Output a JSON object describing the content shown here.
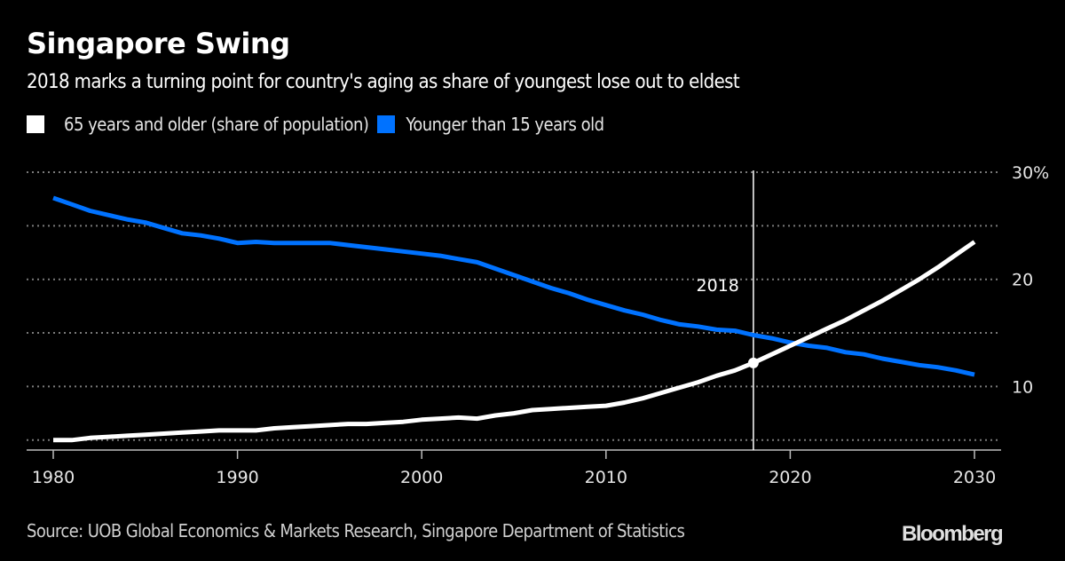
{
  "header": {
    "title": "Singapore Swing",
    "subtitle": "2018 marks a turning point for country's aging as share of youngest lose out to eldest"
  },
  "legend": [
    {
      "label": "65 years and older (share of population)",
      "color": "#ffffff"
    },
    {
      "label": "Younger than 15 years old",
      "color": "#0072ff"
    }
  ],
  "footer": {
    "source": "Source: UOB Global Economics & Markets Research, Singapore Department of Statistics",
    "brand": "Bloomberg"
  },
  "chart_data": {
    "type": "line",
    "title": "Singapore Swing",
    "subtitle": "2018 marks a turning point for country's aging as share of youngest lose out to eldest",
    "xlabel": "",
    "ylabel": "",
    "x": [
      1980,
      1981,
      1982,
      1983,
      1984,
      1985,
      1986,
      1987,
      1988,
      1989,
      1990,
      1991,
      1992,
      1993,
      1994,
      1995,
      1996,
      1997,
      1998,
      1999,
      2000,
      2001,
      2002,
      2003,
      2004,
      2005,
      2006,
      2007,
      2008,
      2009,
      2010,
      2011,
      2012,
      2013,
      2014,
      2015,
      2016,
      2017,
      2018,
      2019,
      2020,
      2021,
      2022,
      2023,
      2024,
      2025,
      2026,
      2027,
      2028,
      2029,
      2030
    ],
    "series": [
      {
        "name": "65 years and older (share of population)",
        "color": "#ffffff",
        "values": [
          5.0,
          5.0,
          5.2,
          5.3,
          5.4,
          5.5,
          5.6,
          5.7,
          5.8,
          5.9,
          5.9,
          5.9,
          6.1,
          6.2,
          6.3,
          6.4,
          6.5,
          6.5,
          6.6,
          6.7,
          6.9,
          7.0,
          7.1,
          7.0,
          7.3,
          7.5,
          7.8,
          7.9,
          8.0,
          8.1,
          8.2,
          8.5,
          8.9,
          9.4,
          9.9,
          10.4,
          11.0,
          11.5,
          12.2,
          13.0,
          13.8,
          14.6,
          15.4,
          16.2,
          17.1,
          18.0,
          19.0,
          20.0,
          21.1,
          22.3,
          23.5
        ]
      },
      {
        "name": "Younger than 15 years old",
        "color": "#0072ff",
        "values": [
          27.6,
          27.0,
          26.4,
          26.0,
          25.6,
          25.3,
          24.8,
          24.3,
          24.1,
          23.8,
          23.4,
          23.5,
          23.4,
          23.4,
          23.4,
          23.4,
          23.2,
          23.0,
          22.8,
          22.6,
          22.4,
          22.2,
          21.9,
          21.6,
          21.0,
          20.4,
          19.8,
          19.2,
          18.7,
          18.1,
          17.6,
          17.1,
          16.7,
          16.2,
          15.8,
          15.6,
          15.3,
          15.2,
          14.8,
          14.5,
          14.1,
          13.8,
          13.6,
          13.2,
          13.0,
          12.6,
          12.3,
          12.0,
          11.8,
          11.5,
          11.1
        ]
      }
    ],
    "ylim": [
      4,
      31
    ],
    "yticks": [
      5,
      10,
      15,
      20,
      25,
      30
    ],
    "ytick_labels": [
      "",
      "10",
      "",
      "20",
      "",
      "30%"
    ],
    "xlim": [
      1979,
      2031.5
    ],
    "xticks": [
      1980,
      1990,
      2000,
      2010,
      2020,
      2030
    ],
    "xtick_labels": [
      "1980",
      "1990",
      "2000",
      "2010",
      "2020",
      "2030"
    ],
    "grid": true,
    "grid_style": "dotted-horizontal",
    "yaxis_side": "right",
    "legend_position": "top-left",
    "annotations": [
      {
        "type": "vertical-line",
        "x": 2018,
        "label": "2018",
        "marker_series": "65 years and older (share of population)",
        "marker_value": 12.2
      }
    ]
  }
}
